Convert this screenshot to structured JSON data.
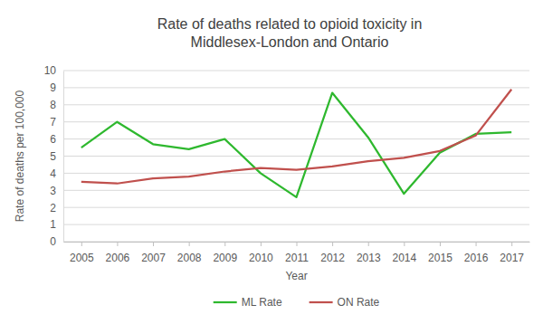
{
  "chart_data": {
    "type": "line",
    "title": "Rate of deaths related to opioid toxicity in Middlesex-London and Ontario",
    "x_label": "Year",
    "y_label": "Rate of deaths per 100,000",
    "categories": [
      "2005",
      "2006",
      "2007",
      "2008",
      "2009",
      "2010",
      "2011",
      "2012",
      "2013",
      "2014",
      "2015",
      "2016",
      "2017"
    ],
    "series": [
      {
        "name": "ML Rate",
        "color": "#2eb82e",
        "values": [
          5.5,
          7.0,
          5.7,
          5.4,
          6.0,
          4.0,
          2.6,
          8.7,
          6.1,
          2.8,
          5.2,
          6.3,
          6.4
        ]
      },
      {
        "name": "ON Rate",
        "color": "#c0504d",
        "values": [
          3.5,
          3.4,
          3.7,
          3.8,
          4.1,
          4.3,
          4.2,
          4.4,
          4.7,
          4.9,
          5.3,
          6.2,
          8.9
        ]
      }
    ],
    "ylim": [
      0,
      10
    ],
    "yticks": [
      0,
      1,
      2,
      3,
      4,
      5,
      6,
      7,
      8,
      9,
      10
    ],
    "grid": true,
    "legend": "bottom"
  }
}
